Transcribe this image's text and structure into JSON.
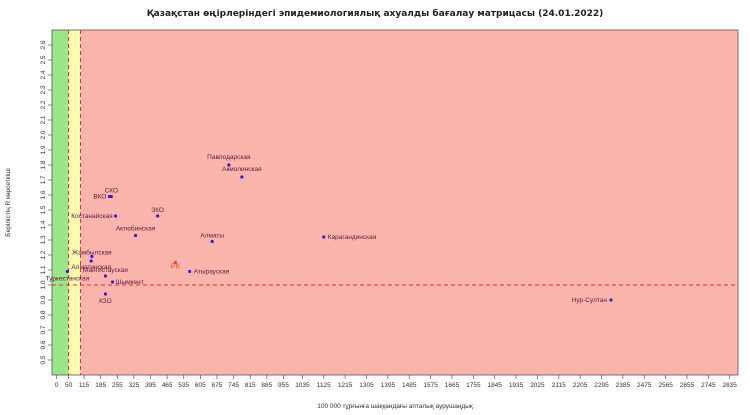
{
  "chart_data": {
    "type": "scatter",
    "title": "Қазақстан өңірлеріндегі эпидемиологиялық ахуалды бағалау матрицасы  (24.01.2022)",
    "xlabel": "100 000 тұрғынға шаққандағы апталық аурушаңдық",
    "ylabel": "Берілістің R көрсеткіші",
    "xlim": [
      -20,
      2870
    ],
    "ylim": [
      0.4,
      2.7
    ],
    "xticks": [
      0,
      50,
      115,
      185,
      255,
      325,
      395,
      465,
      535,
      605,
      675,
      745,
      815,
      885,
      955,
      1035,
      1125,
      1215,
      1305,
      1395,
      1485,
      1575,
      1665,
      1755,
      1845,
      1935,
      2025,
      2115,
      2205,
      2295,
      2385,
      2475,
      2565,
      2655,
      2745,
      2835
    ],
    "yticks": [
      0.5,
      0.6,
      0.7,
      0.8,
      0.9,
      1.0,
      1.1,
      1.2,
      1.3,
      1.4,
      1.5,
      1.6,
      1.7,
      1.8,
      1.9,
      2.0,
      2.1,
      2.2,
      2.3,
      2.4,
      2.5,
      2.6
    ],
    "zones": [
      {
        "x0": -20,
        "x1": 50,
        "color": "#9be58a"
      },
      {
        "x0": 50,
        "x1": 100,
        "color": "#fbfbb0"
      },
      {
        "x0": 100,
        "x1": 2870,
        "color": "#fcb5ad"
      }
    ],
    "threshold_lines": {
      "x": [
        50,
        100
      ],
      "y": 1.0,
      "color": "#e53030"
    },
    "points": [
      {
        "label": "Павлодарская",
        "x": 725,
        "y": 1.8,
        "highlight": false
      },
      {
        "label": "Акмолинская",
        "x": 780,
        "y": 1.72,
        "highlight": false
      },
      {
        "label": "СКО",
        "x": 230,
        "y": 1.59,
        "highlight": false
      },
      {
        "label": "ВКО",
        "x": 222,
        "y": 1.59,
        "highlight": false
      },
      {
        "label": "Костанайская",
        "x": 248,
        "y": 1.46,
        "highlight": false
      },
      {
        "label": "ЗКО",
        "x": 425,
        "y": 1.46,
        "highlight": false
      },
      {
        "label": "Актюбинская",
        "x": 332,
        "y": 1.33,
        "highlight": false
      },
      {
        "label": "Алматы",
        "x": 655,
        "y": 1.29,
        "highlight": false
      },
      {
        "label": "Карагандинская",
        "x": 1125,
        "y": 1.32,
        "highlight": false
      },
      {
        "label": "Жамбылская",
        "x": 148,
        "y": 1.19,
        "highlight": false
      },
      {
        "label": "Алматинская",
        "x": 145,
        "y": 1.16,
        "highlight": false
      },
      {
        "label": "Мангистауская",
        "x": 205,
        "y": 1.06,
        "highlight": false
      },
      {
        "label": "Туркестанская",
        "x": 45,
        "y": 1.09,
        "highlight": false
      },
      {
        "label": "РК",
        "x": 500,
        "y": 1.15,
        "highlight": true
      },
      {
        "label": "Атырауская",
        "x": 560,
        "y": 1.09,
        "highlight": false
      },
      {
        "label": "Шымкент",
        "x": 235,
        "y": 1.02,
        "highlight": false
      },
      {
        "label": "КЗО",
        "x": 205,
        "y": 0.94,
        "highlight": false
      },
      {
        "label": "Нур-Султан",
        "x": 2335,
        "y": 0.9,
        "highlight": false
      }
    ],
    "label_offsets": {}
  }
}
